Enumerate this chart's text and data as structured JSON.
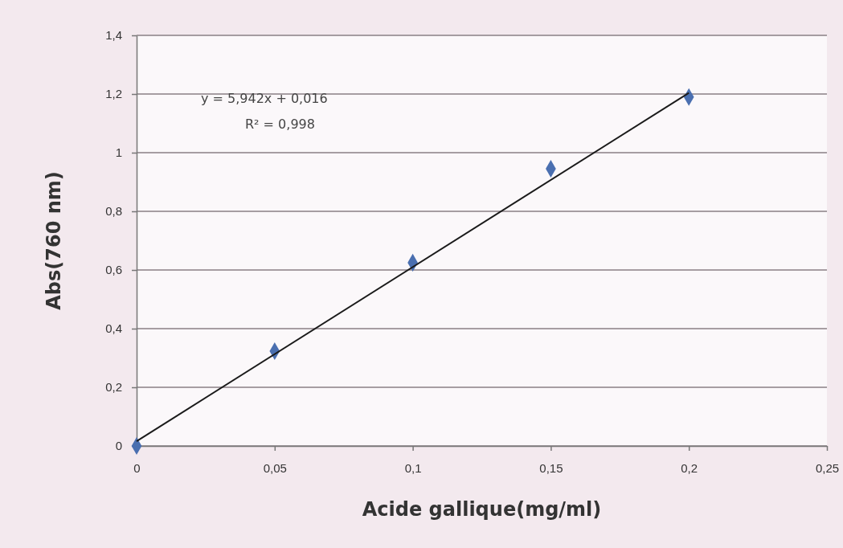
{
  "chart_data": {
    "type": "scatter",
    "xlabel": "Acide gallique(mg/ml)",
    "ylabel": "Abs(760 nm)",
    "annotations": [
      "y = 5,942x + 0,016",
      "R² = 0,998"
    ],
    "series": [
      {
        "color": "#4a6fb0",
        "marker": "diamond",
        "x": [
          0,
          0.05,
          0.1,
          0.15,
          0.2
        ],
        "values": [
          0,
          0.323,
          0.625,
          0.945,
          1.19
        ]
      },
      {
        "type": "line",
        "color": "#1a1a1a",
        "marker": "none",
        "line_style": "solid",
        "x": [
          0,
          0.2
        ],
        "values": [
          0.016,
          1.204
        ]
      }
    ],
    "xlim": [
      0,
      0.25
    ],
    "ylim": [
      0,
      1.4
    ],
    "xticks": [
      0,
      {
        "value": 0.05,
        "label": "0,05"
      },
      {
        "value": 0.1,
        "label": "0,1"
      },
      {
        "value": 0.15,
        "label": "0,15"
      },
      {
        "value": 0.2,
        "label": "0,2"
      },
      {
        "value": 0.25,
        "label": "0,25"
      }
    ],
    "yticks": [
      0,
      {
        "value": 0.2,
        "label": "0,2"
      },
      {
        "value": 0.4,
        "label": "0,4"
      },
      {
        "value": 0.6,
        "label": "0,6"
      },
      {
        "value": 0.8,
        "label": "0,8"
      },
      1,
      {
        "value": 1.2,
        "label": "1,2"
      },
      {
        "value": 1.4,
        "label": "1,4"
      }
    ],
    "grid": "y"
  }
}
